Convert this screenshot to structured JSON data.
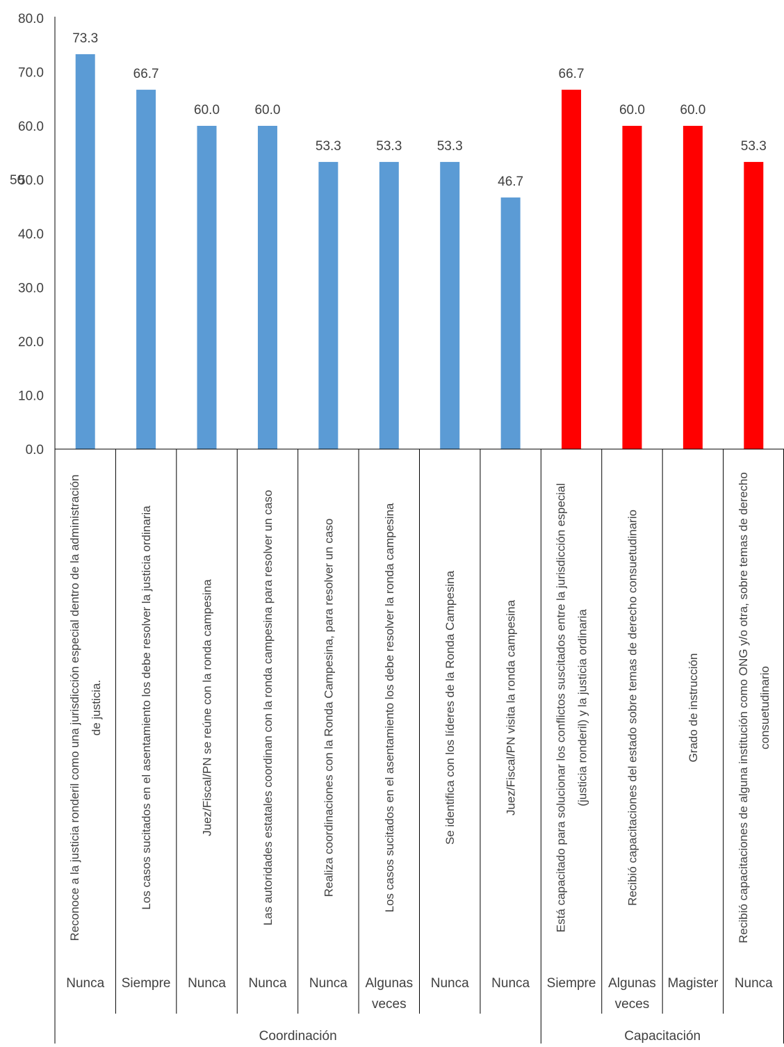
{
  "chart_data": {
    "type": "bar",
    "title": "",
    "xlabel": "",
    "ylabel": "",
    "ylim": [
      0,
      80
    ],
    "yticks": [
      "0.0",
      "10.0",
      "20.0",
      "30.0",
      "40.0",
      "50.0",
      "60.0",
      "70.0",
      "80.0"
    ],
    "grid": false,
    "legend": "none",
    "groups": [
      {
        "label": "Coordinación",
        "color": "#5b9bd5",
        "span": 8
      },
      {
        "label": "Capacitación",
        "color": "#ff0000",
        "span": 4
      }
    ],
    "categories": [
      {
        "item": "Reconoce a la justicia ronderil como una jurisdicción especial dentro de la administración de justicia.",
        "response": "Nunca",
        "group": "Coordinación"
      },
      {
        "item": "Los casos sucitados en el asentamiento los debe resolver la justicia ordinaria",
        "response": "Siempre",
        "group": "Coordinación"
      },
      {
        "item": "Juez/Fiscal/PN se reúne con la ronda campesina",
        "response": "Nunca",
        "group": "Coordinación"
      },
      {
        "item": "Las autoridades estatales coordinan con la ronda campesina para resolver un caso",
        "response": "Nunca",
        "group": "Coordinación"
      },
      {
        "item": "Realiza coordinaciones con la Ronda Campesina, para resolver un caso",
        "response": "Nunca",
        "group": "Coordinación"
      },
      {
        "item": "Los casos sucitados en el asentamiento los debe resolver la ronda campesina",
        "response": "Algunas veces",
        "group": "Coordinación"
      },
      {
        "item": "Se identifica con los líderes de la Ronda Campesina",
        "response": "Nunca",
        "group": "Coordinación"
      },
      {
        "item": "Juez/Fiscal/PN visita la ronda campesina",
        "response": "Nunca",
        "group": "Coordinación"
      },
      {
        "item": "Está capacitado para solucionar los conflictos suscitados entre la jurisdicción especial (justicia ronderil) y la justicia ordinaria",
        "response": "Siempre",
        "group": "Capacitación"
      },
      {
        "item": "Recibió capacitaciones del estado sobre temas de derecho consuetudinario",
        "response": "Algunas veces",
        "group": "Capacitación"
      },
      {
        "item": "Grado de instrucción",
        "response": "Magister",
        "group": "Capacitación"
      },
      {
        "item": "Recibió capacitaciones de alguna institución como ONG y/o otra, sobre temas de derecho consuetudinario",
        "response": "Nunca",
        "group": "Capacitación"
      }
    ],
    "values": [
      73.3,
      66.7,
      60.0,
      60.0,
      53.3,
      53.3,
      53.3,
      46.7,
      66.7,
      60.0,
      60.0,
      53.3
    ],
    "data_labels": [
      "73.3",
      "66.7",
      "60.0",
      "60.0",
      "53.3",
      "53.3",
      "53.3",
      "46.7",
      "66.7",
      "60.0",
      "60.0",
      "53.3"
    ],
    "overlay_text": "50",
    "axis_color": "#000000",
    "text_color": "#404040"
  }
}
